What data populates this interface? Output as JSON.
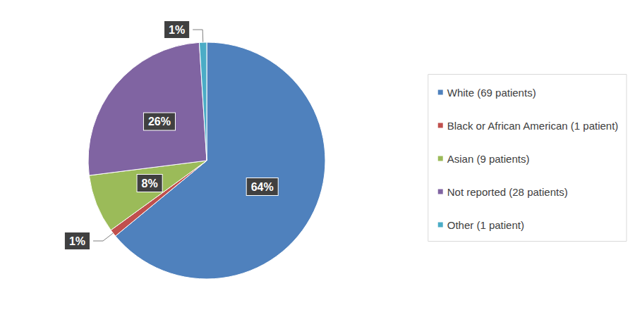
{
  "chart_data": {
    "type": "pie",
    "categories": [
      "White (69 patients)",
      "Black or African American (1 patient)",
      "Asian (9 patients)",
      "Not reported (28 patients)",
      "Other (1 patient)"
    ],
    "values": [
      64,
      1,
      8,
      26,
      1
    ],
    "value_labels": [
      "64%",
      "1%",
      "8%",
      "26%",
      "1%"
    ],
    "colors": [
      "#4f81bd",
      "#c0504d",
      "#9bbb59",
      "#8064a2",
      "#4bacc6"
    ],
    "data_labels": true,
    "legend": "right"
  }
}
